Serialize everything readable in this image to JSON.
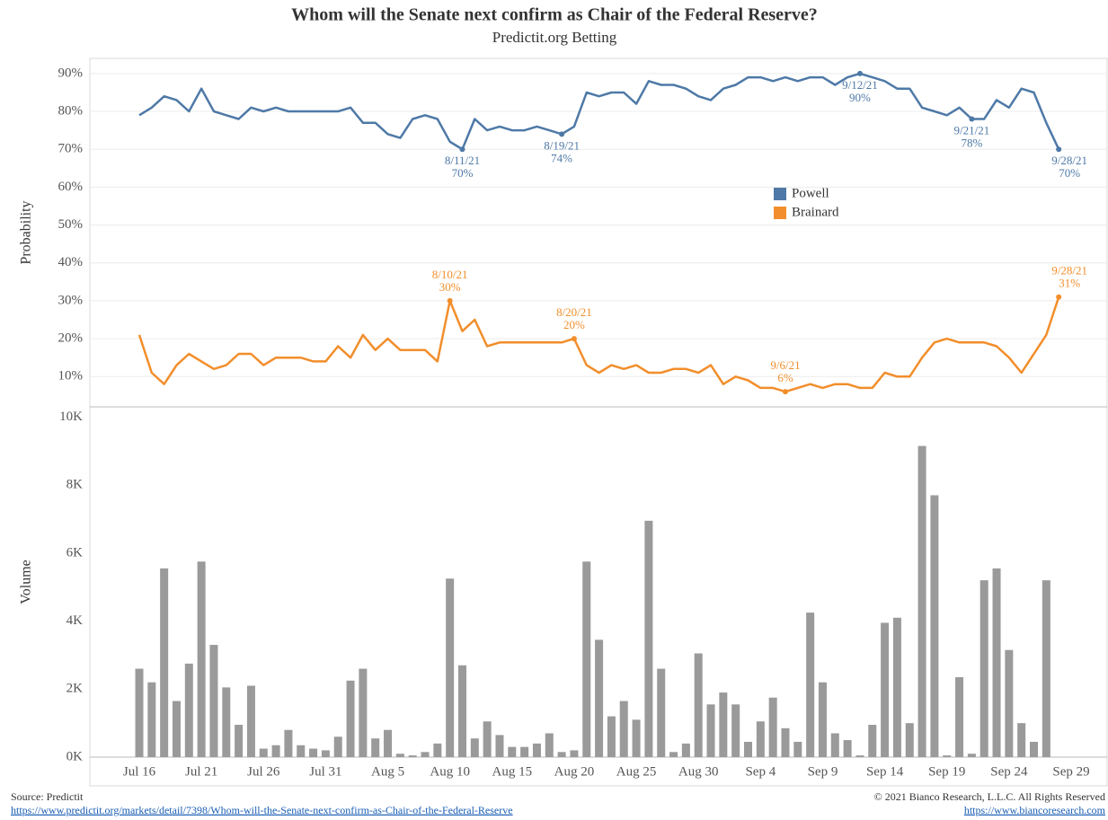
{
  "chart_data": [
    {
      "type": "line",
      "title": "Whom will the Senate next confirm as Chair of the Federal Reserve?",
      "subtitle": "Predictit.org Betting",
      "ylabel": "Probability",
      "ylim": [
        2,
        94
      ],
      "yticks": [
        {
          "value": 10,
          "label": "10%"
        },
        {
          "value": 20,
          "label": "20%"
        },
        {
          "value": 30,
          "label": "30%"
        },
        {
          "value": 40,
          "label": "40%"
        },
        {
          "value": 50,
          "label": "50%"
        },
        {
          "value": 60,
          "label": "60%"
        },
        {
          "value": 70,
          "label": "70%"
        },
        {
          "value": 80,
          "label": "80%"
        },
        {
          "value": 90,
          "label": "90%"
        }
      ],
      "grid": true,
      "series": [
        {
          "name": "Powell",
          "color": "#4e79a7",
          "values": [
            79,
            81,
            84,
            83,
            80,
            86,
            80,
            79,
            78,
            81,
            80,
            81,
            80,
            80,
            80,
            80,
            80,
            81,
            77,
            77,
            74,
            73,
            78,
            79,
            78,
            72,
            70,
            78,
            75,
            76,
            75,
            75,
            76,
            75,
            74,
            76,
            85,
            84,
            85,
            85,
            82,
            88,
            87,
            87,
            86,
            84,
            83,
            86,
            87,
            89,
            89,
            88,
            89,
            88,
            89,
            89,
            87,
            89,
            90,
            89,
            88,
            86,
            86,
            81,
            80,
            79,
            81,
            78,
            78,
            83,
            81,
            86,
            85,
            77,
            70,
            null
          ],
          "value_labels": [
            null,
            null,
            null,
            null,
            null,
            null,
            null,
            null,
            null,
            null,
            null,
            null,
            null,
            null,
            null,
            null,
            null,
            null,
            null,
            null,
            null,
            null,
            null,
            null,
            null,
            null,
            "70%",
            null,
            null,
            null,
            null,
            null,
            null,
            null,
            "74%",
            null,
            null,
            null,
            null,
            null,
            null,
            null,
            null,
            null,
            null,
            null,
            null,
            null,
            null,
            null,
            null,
            null,
            null,
            null,
            null,
            null,
            null,
            null,
            "90%",
            null,
            null,
            null,
            null,
            null,
            null,
            null,
            null,
            "78%",
            null,
            null,
            null,
            null,
            null,
            null,
            "70%",
            null
          ],
          "date_labels": [
            null,
            null,
            null,
            null,
            null,
            null,
            null,
            null,
            null,
            null,
            null,
            null,
            null,
            null,
            null,
            null,
            null,
            null,
            null,
            null,
            null,
            null,
            null,
            null,
            null,
            null,
            "8/11/21",
            null,
            null,
            null,
            null,
            null,
            null,
            null,
            "8/19/21",
            null,
            null,
            null,
            null,
            null,
            null,
            null,
            null,
            null,
            null,
            null,
            null,
            null,
            null,
            null,
            null,
            null,
            null,
            null,
            null,
            null,
            null,
            null,
            "9/12/21",
            null,
            null,
            null,
            null,
            null,
            null,
            null,
            null,
            "9/21/21",
            null,
            null,
            null,
            null,
            null,
            null,
            "9/28/21",
            null
          ]
        },
        {
          "name": "Brainard",
          "color": "#f28e2b",
          "values": [
            21,
            11,
            8,
            13,
            16,
            14,
            12,
            13,
            16,
            16,
            13,
            15,
            15,
            15,
            14,
            14,
            18,
            15,
            21,
            17,
            20,
            17,
            17,
            17,
            14,
            30,
            22,
            25,
            18,
            19,
            19,
            19,
            19,
            19,
            19,
            20,
            13,
            11,
            13,
            12,
            13,
            11,
            11,
            12,
            12,
            11,
            13,
            8,
            10,
            9,
            7,
            7,
            6,
            7,
            8,
            7,
            8,
            8,
            7,
            7,
            11,
            10,
            10,
            15,
            19,
            20,
            19,
            19,
            19,
            18,
            15,
            11,
            16,
            21,
            31,
            null
          ],
          "value_labels": [
            null,
            null,
            null,
            null,
            null,
            null,
            null,
            null,
            null,
            null,
            null,
            null,
            null,
            null,
            null,
            null,
            null,
            null,
            null,
            null,
            null,
            null,
            null,
            null,
            null,
            "30%",
            null,
            null,
            null,
            null,
            null,
            null,
            null,
            null,
            null,
            "20%",
            null,
            null,
            null,
            null,
            null,
            null,
            null,
            null,
            null,
            null,
            null,
            null,
            null,
            null,
            null,
            null,
            "6%",
            null,
            null,
            null,
            null,
            null,
            null,
            null,
            null,
            null,
            null,
            null,
            null,
            null,
            null,
            null,
            null,
            null,
            null,
            null,
            null,
            null,
            "31%",
            null
          ],
          "date_labels": [
            null,
            null,
            null,
            null,
            null,
            null,
            null,
            null,
            null,
            null,
            null,
            null,
            null,
            null,
            null,
            null,
            null,
            null,
            null,
            null,
            null,
            null,
            null,
            null,
            null,
            "8/10/21",
            null,
            null,
            null,
            null,
            null,
            null,
            null,
            null,
            null,
            "8/20/21",
            null,
            null,
            null,
            null,
            null,
            null,
            null,
            null,
            null,
            null,
            null,
            null,
            null,
            null,
            null,
            null,
            "9/6/21",
            null,
            null,
            null,
            null,
            null,
            null,
            null,
            null,
            null,
            null,
            null,
            null,
            null,
            null,
            null,
            null,
            null,
            null,
            null,
            null,
            null,
            "9/28/21",
            null
          ]
        }
      ]
    },
    {
      "type": "bar",
      "ylabel": "Volume",
      "color": "#9a9a9a",
      "categories": [
        "Jul 16",
        null,
        null,
        null,
        null,
        "Jul 21",
        null,
        null,
        null,
        null,
        "Jul 26",
        null,
        null,
        null,
        null,
        "Jul 31",
        null,
        null,
        null,
        null,
        "Aug 5",
        null,
        null,
        null,
        null,
        "Aug 10",
        null,
        null,
        null,
        null,
        "Aug 15",
        null,
        null,
        null,
        null,
        "Aug 20",
        null,
        null,
        null,
        null,
        "Aug 25",
        null,
        null,
        null,
        null,
        "Aug 30",
        null,
        null,
        null,
        null,
        "Sep 4",
        null,
        null,
        null,
        null,
        "Sep 9",
        null,
        null,
        null,
        null,
        "Sep 14",
        null,
        null,
        null,
        null,
        "Sep 19",
        null,
        null,
        null,
        null,
        "Sep 24",
        null,
        null,
        null,
        null,
        "Sep 29"
      ],
      "values": [
        2600,
        2200,
        5550,
        1650,
        2750,
        5750,
        3300,
        2050,
        950,
        2100,
        250,
        350,
        800,
        350,
        250,
        200,
        600,
        2250,
        2600,
        550,
        800,
        100,
        50,
        150,
        400,
        5250,
        2700,
        550,
        1050,
        650,
        300,
        300,
        400,
        700,
        150,
        200,
        5750,
        3450,
        1200,
        1650,
        1100,
        6950,
        2600,
        150,
        400,
        3050,
        1550,
        1900,
        1550,
        450,
        1050,
        1750,
        850,
        450,
        4250,
        2200,
        700,
        500,
        50,
        950,
        3950,
        4100,
        1000,
        9150,
        7700,
        50,
        2350,
        100,
        5200,
        5550,
        3150,
        1000,
        450,
        5200,
        null,
        null
      ],
      "ylim": [
        0,
        10300
      ],
      "yticks": [
        {
          "value": 0,
          "label": "0K"
        },
        {
          "value": 2000,
          "label": "2K"
        },
        {
          "value": 4000,
          "label": "4K"
        },
        {
          "value": 6000,
          "label": "6K"
        },
        {
          "value": 8000,
          "label": "8K"
        },
        {
          "value": 10000,
          "label": "10K"
        }
      ]
    }
  ],
  "footer": {
    "source": "Source: Predictit",
    "source_url": "https://www.predictit.org/markets/detail/7398/Whom-will-the-Senate-next-confirm-as-Chair-of-the-Federal-Reserve",
    "copyright": "© 2021 Bianco Research, L.L.C. All Rights Reserved",
    "site_url": "https://www.biancoresearch.com"
  }
}
